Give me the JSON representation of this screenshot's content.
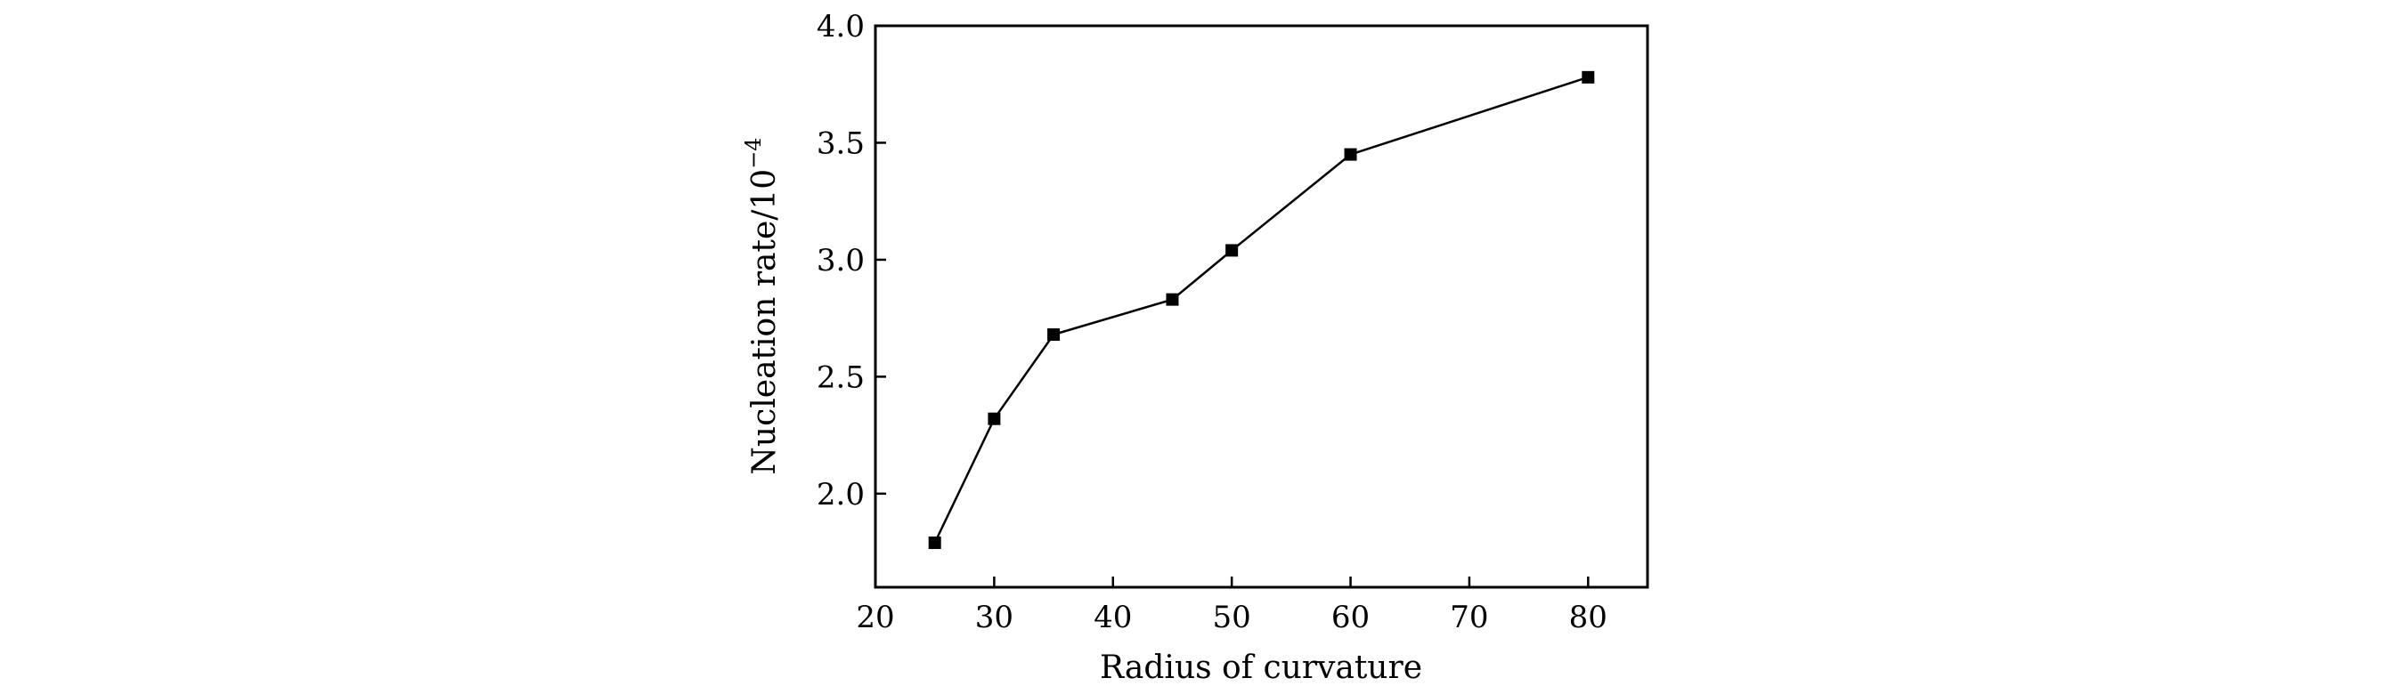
{
  "chart_data": {
    "type": "line",
    "title": "",
    "xlabel": "Radius of curvature",
    "ylabel": "Nucleation rate/10",
    "ylabel_exponent": "−4",
    "xlim": [
      20,
      85
    ],
    "ylim": [
      1.6,
      4.0
    ],
    "grid": false,
    "x_ticks": [
      20,
      30,
      40,
      50,
      60,
      70,
      80
    ],
    "x_tick_labels": [
      "20",
      "30",
      "40",
      "50",
      "60",
      "70",
      "80"
    ],
    "y_ticks": [
      2.0,
      2.5,
      3.0,
      3.5,
      4.0
    ],
    "y_tick_labels": [
      "2.0",
      "2.5",
      "3.0",
      "3.5",
      "4.0"
    ],
    "series": [
      {
        "marker": "square",
        "color": "#000000",
        "x": [
          25,
          30,
          35,
          45,
          50,
          60,
          80
        ],
        "y": [
          1.79,
          2.32,
          2.68,
          2.83,
          3.04,
          3.45,
          3.78
        ]
      }
    ]
  }
}
